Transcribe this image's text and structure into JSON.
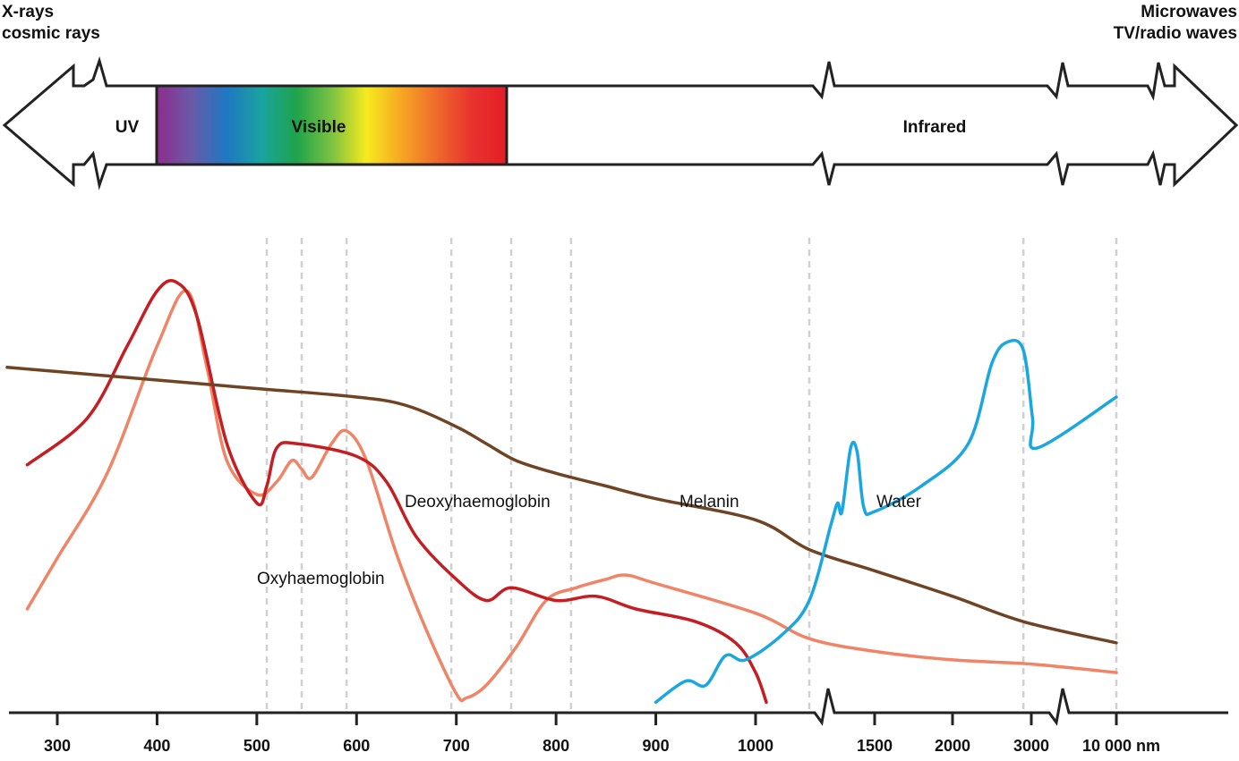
{
  "spectrum_bar": {
    "left_labels": [
      "X-rays",
      "cosmic rays"
    ],
    "right_labels": [
      "Microwaves",
      "TV/radio waves"
    ],
    "regions": [
      {
        "name": "UV"
      },
      {
        "name": "Visible"
      },
      {
        "name": "Infrared"
      }
    ],
    "visible_gradient": [
      "#8e2c8c",
      "#6a5aa8",
      "#1e78c2",
      "#1aa3a0",
      "#1fa34a",
      "#7cc242",
      "#f6ea1e",
      "#f6a623",
      "#ef6a2b",
      "#e8322f",
      "#e41e26"
    ]
  },
  "chart_data": {
    "type": "line",
    "xlabel": "",
    "ylabel": "",
    "x_axis_scale": "broken: linear 300–1000 nm, then compressed segments beyond breaks",
    "x_ticks": [
      "300",
      "400",
      "500",
      "600",
      "700",
      "800",
      "900",
      "1000",
      "1500",
      "2000",
      "3000",
      "10 000 nm"
    ],
    "x_breaks_after": [
      "1000",
      "3000"
    ],
    "vertical_gridlines_nm": [
      510,
      545,
      590,
      695,
      755,
      815,
      1200,
      2900,
      10000
    ],
    "grid_style": "dashed vertical",
    "legend": "inline labels",
    "series": [
      {
        "name": "Oxyhaemoglobin",
        "color": "#f08466",
        "points": [
          [
            270,
            0.23
          ],
          [
            300,
            0.35
          ],
          [
            350,
            0.55
          ],
          [
            400,
            0.85
          ],
          [
            430,
            0.98
          ],
          [
            450,
            0.8
          ],
          [
            470,
            0.58
          ],
          [
            500,
            0.5
          ],
          [
            520,
            0.53
          ],
          [
            535,
            0.58
          ],
          [
            545,
            0.56
          ],
          [
            555,
            0.54
          ],
          [
            575,
            0.62
          ],
          [
            590,
            0.65
          ],
          [
            610,
            0.58
          ],
          [
            640,
            0.36
          ],
          [
            670,
            0.18
          ],
          [
            700,
            0.03
          ],
          [
            710,
            0.02
          ],
          [
            730,
            0.05
          ],
          [
            760,
            0.14
          ],
          [
            790,
            0.25
          ],
          [
            820,
            0.28
          ],
          [
            850,
            0.3
          ],
          [
            870,
            0.31
          ],
          [
            900,
            0.29
          ],
          [
            1000,
            0.22
          ],
          [
            1200,
            0.16
          ],
          [
            1500,
            0.13
          ],
          [
            2000,
            0.11
          ],
          [
            3000,
            0.1
          ],
          [
            10000,
            0.08
          ]
        ]
      },
      {
        "name": "Deoxyhaemoglobin",
        "color": "#c41e22",
        "points": [
          [
            270,
            0.57
          ],
          [
            330,
            0.68
          ],
          [
            370,
            0.85
          ],
          [
            400,
            0.98
          ],
          [
            420,
            1.0
          ],
          [
            440,
            0.92
          ],
          [
            470,
            0.62
          ],
          [
            500,
            0.48
          ],
          [
            510,
            0.52
          ],
          [
            520,
            0.61
          ],
          [
            540,
            0.62
          ],
          [
            600,
            0.59
          ],
          [
            630,
            0.53
          ],
          [
            660,
            0.4
          ],
          [
            700,
            0.3
          ],
          [
            730,
            0.25
          ],
          [
            755,
            0.28
          ],
          [
            800,
            0.25
          ],
          [
            840,
            0.26
          ],
          [
            880,
            0.23
          ],
          [
            940,
            0.2
          ],
          [
            980,
            0.15
          ],
          [
            1000,
            0.08
          ],
          [
            1040,
            0.01
          ]
        ]
      },
      {
        "name": "Melanin",
        "color": "#6e4424",
        "points": [
          [
            250,
            0.8
          ],
          [
            300,
            0.79
          ],
          [
            400,
            0.77
          ],
          [
            500,
            0.75
          ],
          [
            600,
            0.73
          ],
          [
            650,
            0.71
          ],
          [
            700,
            0.66
          ],
          [
            730,
            0.62
          ],
          [
            760,
            0.58
          ],
          [
            800,
            0.55
          ],
          [
            850,
            0.52
          ],
          [
            900,
            0.49
          ],
          [
            1000,
            0.44
          ],
          [
            1200,
            0.37
          ],
          [
            1500,
            0.32
          ],
          [
            2000,
            0.26
          ],
          [
            2900,
            0.2
          ],
          [
            10000,
            0.15
          ]
        ]
      },
      {
        "name": "Water",
        "color": "#1aa7e0",
        "points": [
          [
            900,
            0.01
          ],
          [
            930,
            0.06
          ],
          [
            950,
            0.05
          ],
          [
            970,
            0.12
          ],
          [
            990,
            0.11
          ],
          [
            1100,
            0.17
          ],
          [
            1200,
            0.25
          ],
          [
            1300,
            0.43
          ],
          [
            1330,
            0.48
          ],
          [
            1350,
            0.46
          ],
          [
            1390,
            0.61
          ],
          [
            1420,
            0.6
          ],
          [
            1450,
            0.47
          ],
          [
            1500,
            0.46
          ],
          [
            1800,
            0.52
          ],
          [
            2200,
            0.62
          ],
          [
            2500,
            0.81
          ],
          [
            2700,
            0.86
          ],
          [
            2900,
            0.84
          ],
          [
            3100,
            0.68
          ],
          [
            3500,
            0.61
          ],
          [
            10000,
            0.73
          ]
        ]
      }
    ],
    "annotations": [
      "Oxyhaemoglobin",
      "Deoxyhaemoglobin",
      "Melanin",
      "Water"
    ]
  }
}
